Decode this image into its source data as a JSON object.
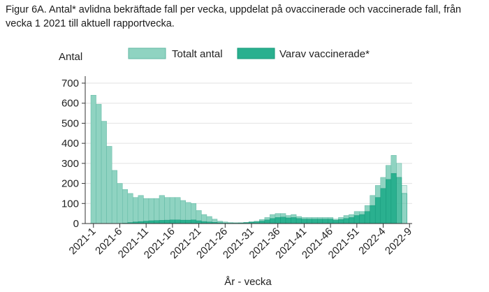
{
  "figure_title": "Figur 6A. Antal* avlidna bekräftade fall per vecka, uppdelat på ovaccinerade och vaccinerade fall, från vecka 1 2021 till aktuell rapportvecka.",
  "colors": {
    "total": "#8fd3c1",
    "total_stroke": "#5fb7a2",
    "vacc": "#2ab08f",
    "vacc_stroke": "#15997a",
    "grid": "#e2e2e2",
    "axis": "#333333"
  },
  "chart_data": {
    "type": "bar",
    "title": "",
    "ylabel": "Antal",
    "xlabel": "År - vecka",
    "ylim": [
      0,
      700
    ],
    "yticks": [
      0,
      100,
      200,
      300,
      400,
      500,
      600,
      700
    ],
    "x_tick_labels": [
      "2021-1",
      "2021-6",
      "2021-11",
      "2021-16",
      "2021-21",
      "2021-26",
      "2021-31",
      "2021-36",
      "2021-41",
      "2021-46",
      "2021-51",
      "2022-4",
      "2022-9"
    ],
    "grid": true,
    "legend_position": "top",
    "categories": [
      "2021-1",
      "2021-2",
      "2021-3",
      "2021-4",
      "2021-5",
      "2021-6",
      "2021-7",
      "2021-8",
      "2021-9",
      "2021-10",
      "2021-11",
      "2021-12",
      "2021-13",
      "2021-14",
      "2021-15",
      "2021-16",
      "2021-17",
      "2021-18",
      "2021-19",
      "2021-20",
      "2021-21",
      "2021-22",
      "2021-23",
      "2021-24",
      "2021-25",
      "2021-26",
      "2021-27",
      "2021-28",
      "2021-29",
      "2021-30",
      "2021-31",
      "2021-32",
      "2021-33",
      "2021-34",
      "2021-35",
      "2021-36",
      "2021-37",
      "2021-38",
      "2021-39",
      "2021-40",
      "2021-41",
      "2021-42",
      "2021-43",
      "2021-44",
      "2021-45",
      "2021-46",
      "2021-47",
      "2021-48",
      "2021-49",
      "2021-50",
      "2021-51",
      "2021-52",
      "2022-1",
      "2022-2",
      "2022-3",
      "2022-4",
      "2022-5",
      "2022-6",
      "2022-7",
      "2022-8"
    ],
    "series": [
      {
        "name": "Totalt antal",
        "values": [
          640,
          595,
          510,
          385,
          265,
          200,
          170,
          150,
          130,
          140,
          125,
          125,
          125,
          140,
          130,
          130,
          130,
          115,
          105,
          100,
          65,
          45,
          35,
          22,
          12,
          8,
          5,
          4,
          4,
          6,
          10,
          12,
          20,
          30,
          45,
          50,
          50,
          40,
          45,
          35,
          30,
          30,
          30,
          30,
          30,
          30,
          22,
          30,
          40,
          45,
          60,
          60,
          90,
          140,
          190,
          230,
          290,
          340,
          300,
          190
        ]
      },
      {
        "name": "Varav vaccinerade*",
        "values": [
          0,
          0,
          0,
          0,
          0,
          0,
          2,
          5,
          8,
          10,
          12,
          14,
          15,
          16,
          17,
          18,
          18,
          17,
          17,
          18,
          14,
          10,
          8,
          6,
          4,
          2,
          2,
          2,
          3,
          4,
          6,
          8,
          12,
          18,
          25,
          30,
          32,
          28,
          30,
          25,
          22,
          22,
          22,
          22,
          22,
          22,
          16,
          20,
          25,
          30,
          40,
          45,
          60,
          90,
          130,
          175,
          220,
          250,
          230,
          150
        ]
      }
    ]
  }
}
